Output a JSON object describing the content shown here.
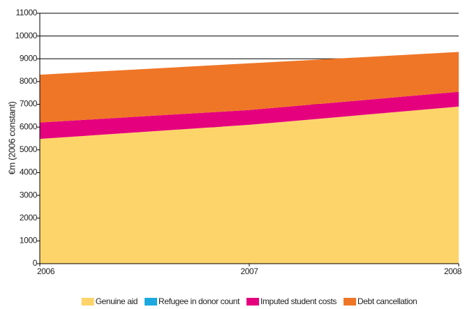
{
  "chart_data": {
    "type": "stacked-area",
    "ylabel": "€m (2006 constant)",
    "categories": [
      "2006",
      "2007",
      "2008"
    ],
    "series": [
      {
        "name": "Genuine aid",
        "color": "#fdd46a",
        "values": [
          5480,
          6100,
          6900
        ]
      },
      {
        "name": "Refugee in donor count",
        "color": "#1ba9e0",
        "values": [
          0,
          0,
          0
        ]
      },
      {
        "name": "Imputed student costs",
        "color": "#e5007e",
        "values": [
          720,
          650,
          650
        ]
      },
      {
        "name": "Debt cancellation",
        "color": "#ef7627",
        "values": [
          2100,
          2050,
          1750
        ]
      }
    ],
    "ylim": [
      0,
      11000
    ],
    "yticks": [
      0,
      1000,
      2000,
      3000,
      4000,
      5000,
      6000,
      7000,
      8000,
      9000,
      10000,
      11000
    ],
    "grid": true
  }
}
